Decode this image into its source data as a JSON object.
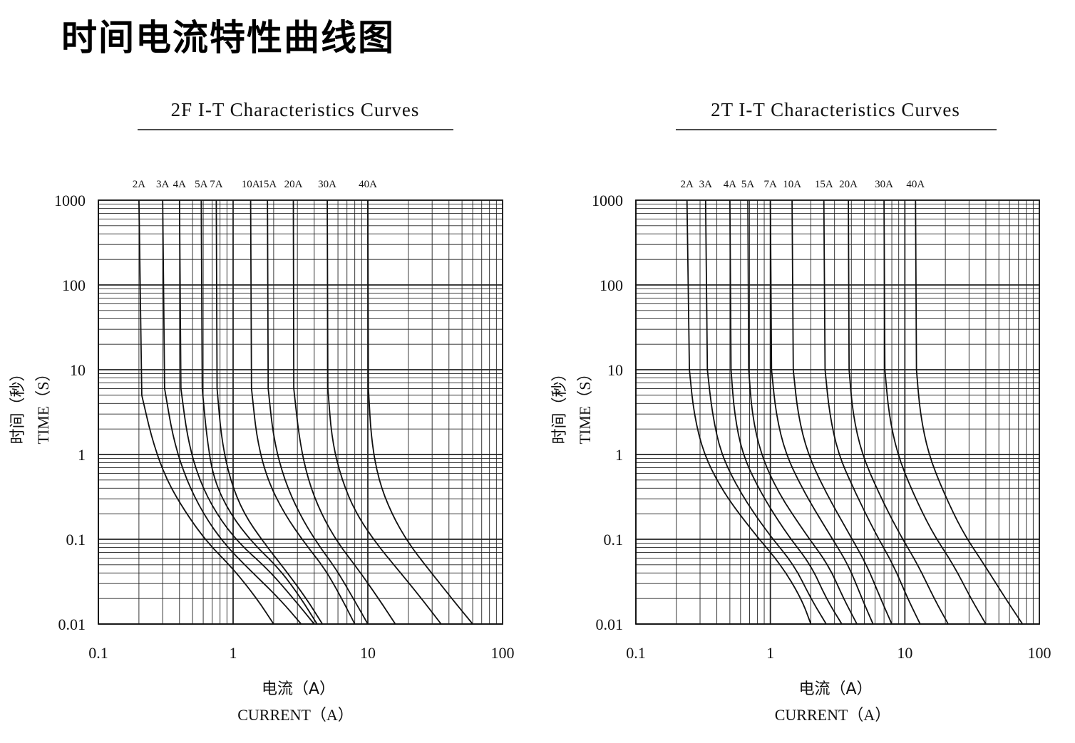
{
  "page_title": "时间电流特性曲线图",
  "chart_data": [
    {
      "type": "line",
      "title": "2F I-T Characteristics Curves",
      "xlabel_cn": "电流（A）",
      "xlabel": "CURRENT（A）",
      "ylabel_cn": "时间（秒）",
      "ylabel": "TIME（S）",
      "x_scale": "log",
      "y_scale": "log",
      "xlim": [
        0.1,
        100
      ],
      "ylim": [
        0.01,
        1000
      ],
      "x_ticks": [
        "0.1",
        "1",
        "10",
        "100"
      ],
      "y_ticks": [
        "1000",
        "100",
        "10",
        "1",
        "0.1",
        "0.01"
      ],
      "grid": true,
      "series": [
        {
          "name": "2A",
          "x": [
            0.2,
            0.21,
            0.25,
            0.32,
            0.45,
            0.65,
            1.0,
            1.5,
            2.0
          ],
          "y": [
            1000,
            5,
            1.5,
            0.5,
            0.2,
            0.09,
            0.045,
            0.02,
            0.01
          ]
        },
        {
          "name": "3A",
          "x": [
            0.3,
            0.31,
            0.36,
            0.45,
            0.6,
            0.85,
            1.3,
            2.2,
            3.2
          ],
          "y": [
            1000,
            6,
            1.5,
            0.5,
            0.2,
            0.09,
            0.045,
            0.02,
            0.01
          ]
        },
        {
          "name": "4A",
          "x": [
            0.4,
            0.41,
            0.46,
            0.56,
            0.75,
            1.1,
            1.8,
            2.8,
            4.0
          ],
          "y": [
            1000,
            6,
            1.5,
            0.5,
            0.2,
            0.09,
            0.045,
            0.02,
            0.01
          ]
        },
        {
          "name": "5A",
          "x": [
            0.58,
            0.59,
            0.64,
            0.72,
            0.95,
            1.4,
            2.2,
            3.2,
            4.2
          ],
          "y": [
            1000,
            6,
            1.5,
            0.5,
            0.2,
            0.09,
            0.045,
            0.02,
            0.01
          ]
        },
        {
          "name": "7A",
          "x": [
            0.75,
            0.76,
            0.82,
            0.95,
            1.2,
            1.7,
            2.4,
            3.5,
            4.6
          ],
          "y": [
            1000,
            6,
            1.5,
            0.5,
            0.2,
            0.09,
            0.045,
            0.02,
            0.01
          ]
        },
        {
          "name": "10A",
          "x": [
            1.35,
            1.37,
            1.5,
            1.8,
            2.4,
            3.4,
            4.8,
            6.4,
            8.0
          ],
          "y": [
            1000,
            6,
            1.5,
            0.5,
            0.2,
            0.09,
            0.045,
            0.02,
            0.01
          ]
        },
        {
          "name": "15A",
          "x": [
            1.8,
            1.82,
            2.0,
            2.4,
            3.1,
            4.2,
            5.8,
            7.8,
            10.0
          ],
          "y": [
            1000,
            6,
            1.5,
            0.5,
            0.2,
            0.09,
            0.045,
            0.02,
            0.01
          ]
        },
        {
          "name": "20A",
          "x": [
            2.8,
            2.82,
            3.1,
            3.6,
            4.5,
            6.0,
            8.4,
            12.0,
            16.0
          ],
          "y": [
            1000,
            6,
            1.5,
            0.5,
            0.2,
            0.09,
            0.045,
            0.02,
            0.01
          ]
        },
        {
          "name": "30A",
          "x": [
            5.0,
            5.05,
            5.4,
            6.4,
            8.2,
            11.5,
            16.5,
            25.0,
            35.0
          ],
          "y": [
            1000,
            6,
            1.5,
            0.5,
            0.2,
            0.09,
            0.045,
            0.02,
            0.01
          ]
        },
        {
          "name": "40A",
          "x": [
            10.0,
            10.1,
            10.6,
            12.0,
            15.0,
            20.0,
            28.0,
            42.0,
            60.0
          ],
          "y": [
            1000,
            6,
            1.5,
            0.5,
            0.2,
            0.09,
            0.045,
            0.02,
            0.01
          ]
        }
      ]
    },
    {
      "type": "line",
      "title": "2T I-T Characteristics Curves",
      "xlabel_cn": "电流（A）",
      "xlabel": "CURRENT（A）",
      "ylabel_cn": "时间（秒）",
      "ylabel": "TIME（S）",
      "x_scale": "log",
      "y_scale": "log",
      "xlim": [
        0.1,
        100
      ],
      "ylim": [
        0.01,
        1000
      ],
      "x_ticks": [
        "0.1",
        "1",
        "10",
        "100"
      ],
      "y_ticks": [
        "1000",
        "100",
        "10",
        "1",
        "0.1",
        "0.01"
      ],
      "grid": true,
      "series": [
        {
          "name": "2A",
          "x": [
            0.24,
            0.25,
            0.27,
            0.32,
            0.45,
            0.75,
            1.2,
            1.7,
            2.0
          ],
          "y": [
            1000,
            10,
            3,
            1,
            0.35,
            0.12,
            0.05,
            0.02,
            0.01
          ]
        },
        {
          "name": "3A",
          "x": [
            0.33,
            0.34,
            0.37,
            0.43,
            0.6,
            0.95,
            1.5,
            2.0,
            2.6
          ],
          "y": [
            1000,
            10,
            3,
            1,
            0.35,
            0.12,
            0.05,
            0.02,
            0.01
          ]
        },
        {
          "name": "4A",
          "x": [
            0.5,
            0.51,
            0.54,
            0.62,
            0.85,
            1.3,
            2.0,
            2.6,
            3.4
          ],
          "y": [
            1000,
            10,
            3,
            1,
            0.35,
            0.12,
            0.05,
            0.02,
            0.01
          ]
        },
        {
          "name": "5A",
          "x": [
            0.68,
            0.69,
            0.73,
            0.85,
            1.15,
            1.8,
            2.7,
            3.5,
            4.4
          ],
          "y": [
            1000,
            10,
            3,
            1,
            0.35,
            0.12,
            0.05,
            0.02,
            0.01
          ]
        },
        {
          "name": "7A",
          "x": [
            1.0,
            1.02,
            1.1,
            1.3,
            1.8,
            2.7,
            3.8,
            4.8,
            5.8
          ],
          "y": [
            1000,
            10,
            3,
            1,
            0.35,
            0.12,
            0.05,
            0.02,
            0.01
          ]
        },
        {
          "name": "10A",
          "x": [
            1.45,
            1.48,
            1.6,
            1.9,
            2.6,
            3.8,
            5.2,
            6.6,
            8.0
          ],
          "y": [
            1000,
            10,
            3,
            1,
            0.35,
            0.12,
            0.05,
            0.02,
            0.01
          ]
        },
        {
          "name": "15A",
          "x": [
            2.5,
            2.55,
            2.75,
            3.2,
            4.3,
            6.0,
            8.2,
            10.5,
            13.0
          ],
          "y": [
            1000,
            10,
            3,
            1,
            0.35,
            0.12,
            0.05,
            0.02,
            0.01
          ]
        },
        {
          "name": "20A",
          "x": [
            3.8,
            3.85,
            4.1,
            4.8,
            6.4,
            9.0,
            12.5,
            16.5,
            21.0
          ],
          "y": [
            1000,
            10,
            3,
            1,
            0.35,
            0.12,
            0.05,
            0.02,
            0.01
          ]
        },
        {
          "name": "30A",
          "x": [
            7.0,
            7.1,
            7.6,
            8.8,
            11.5,
            16.0,
            23.0,
            31.0,
            40.0
          ],
          "y": [
            1000,
            10,
            3,
            1,
            0.35,
            0.12,
            0.05,
            0.02,
            0.01
          ]
        },
        {
          "name": "40A",
          "x": [
            12.0,
            12.2,
            13.0,
            15.0,
            19.5,
            27.0,
            39.0,
            56.0,
            75.0
          ],
          "y": [
            1000,
            10,
            3,
            1,
            0.35,
            0.12,
            0.05,
            0.02,
            0.01
          ]
        }
      ]
    }
  ]
}
